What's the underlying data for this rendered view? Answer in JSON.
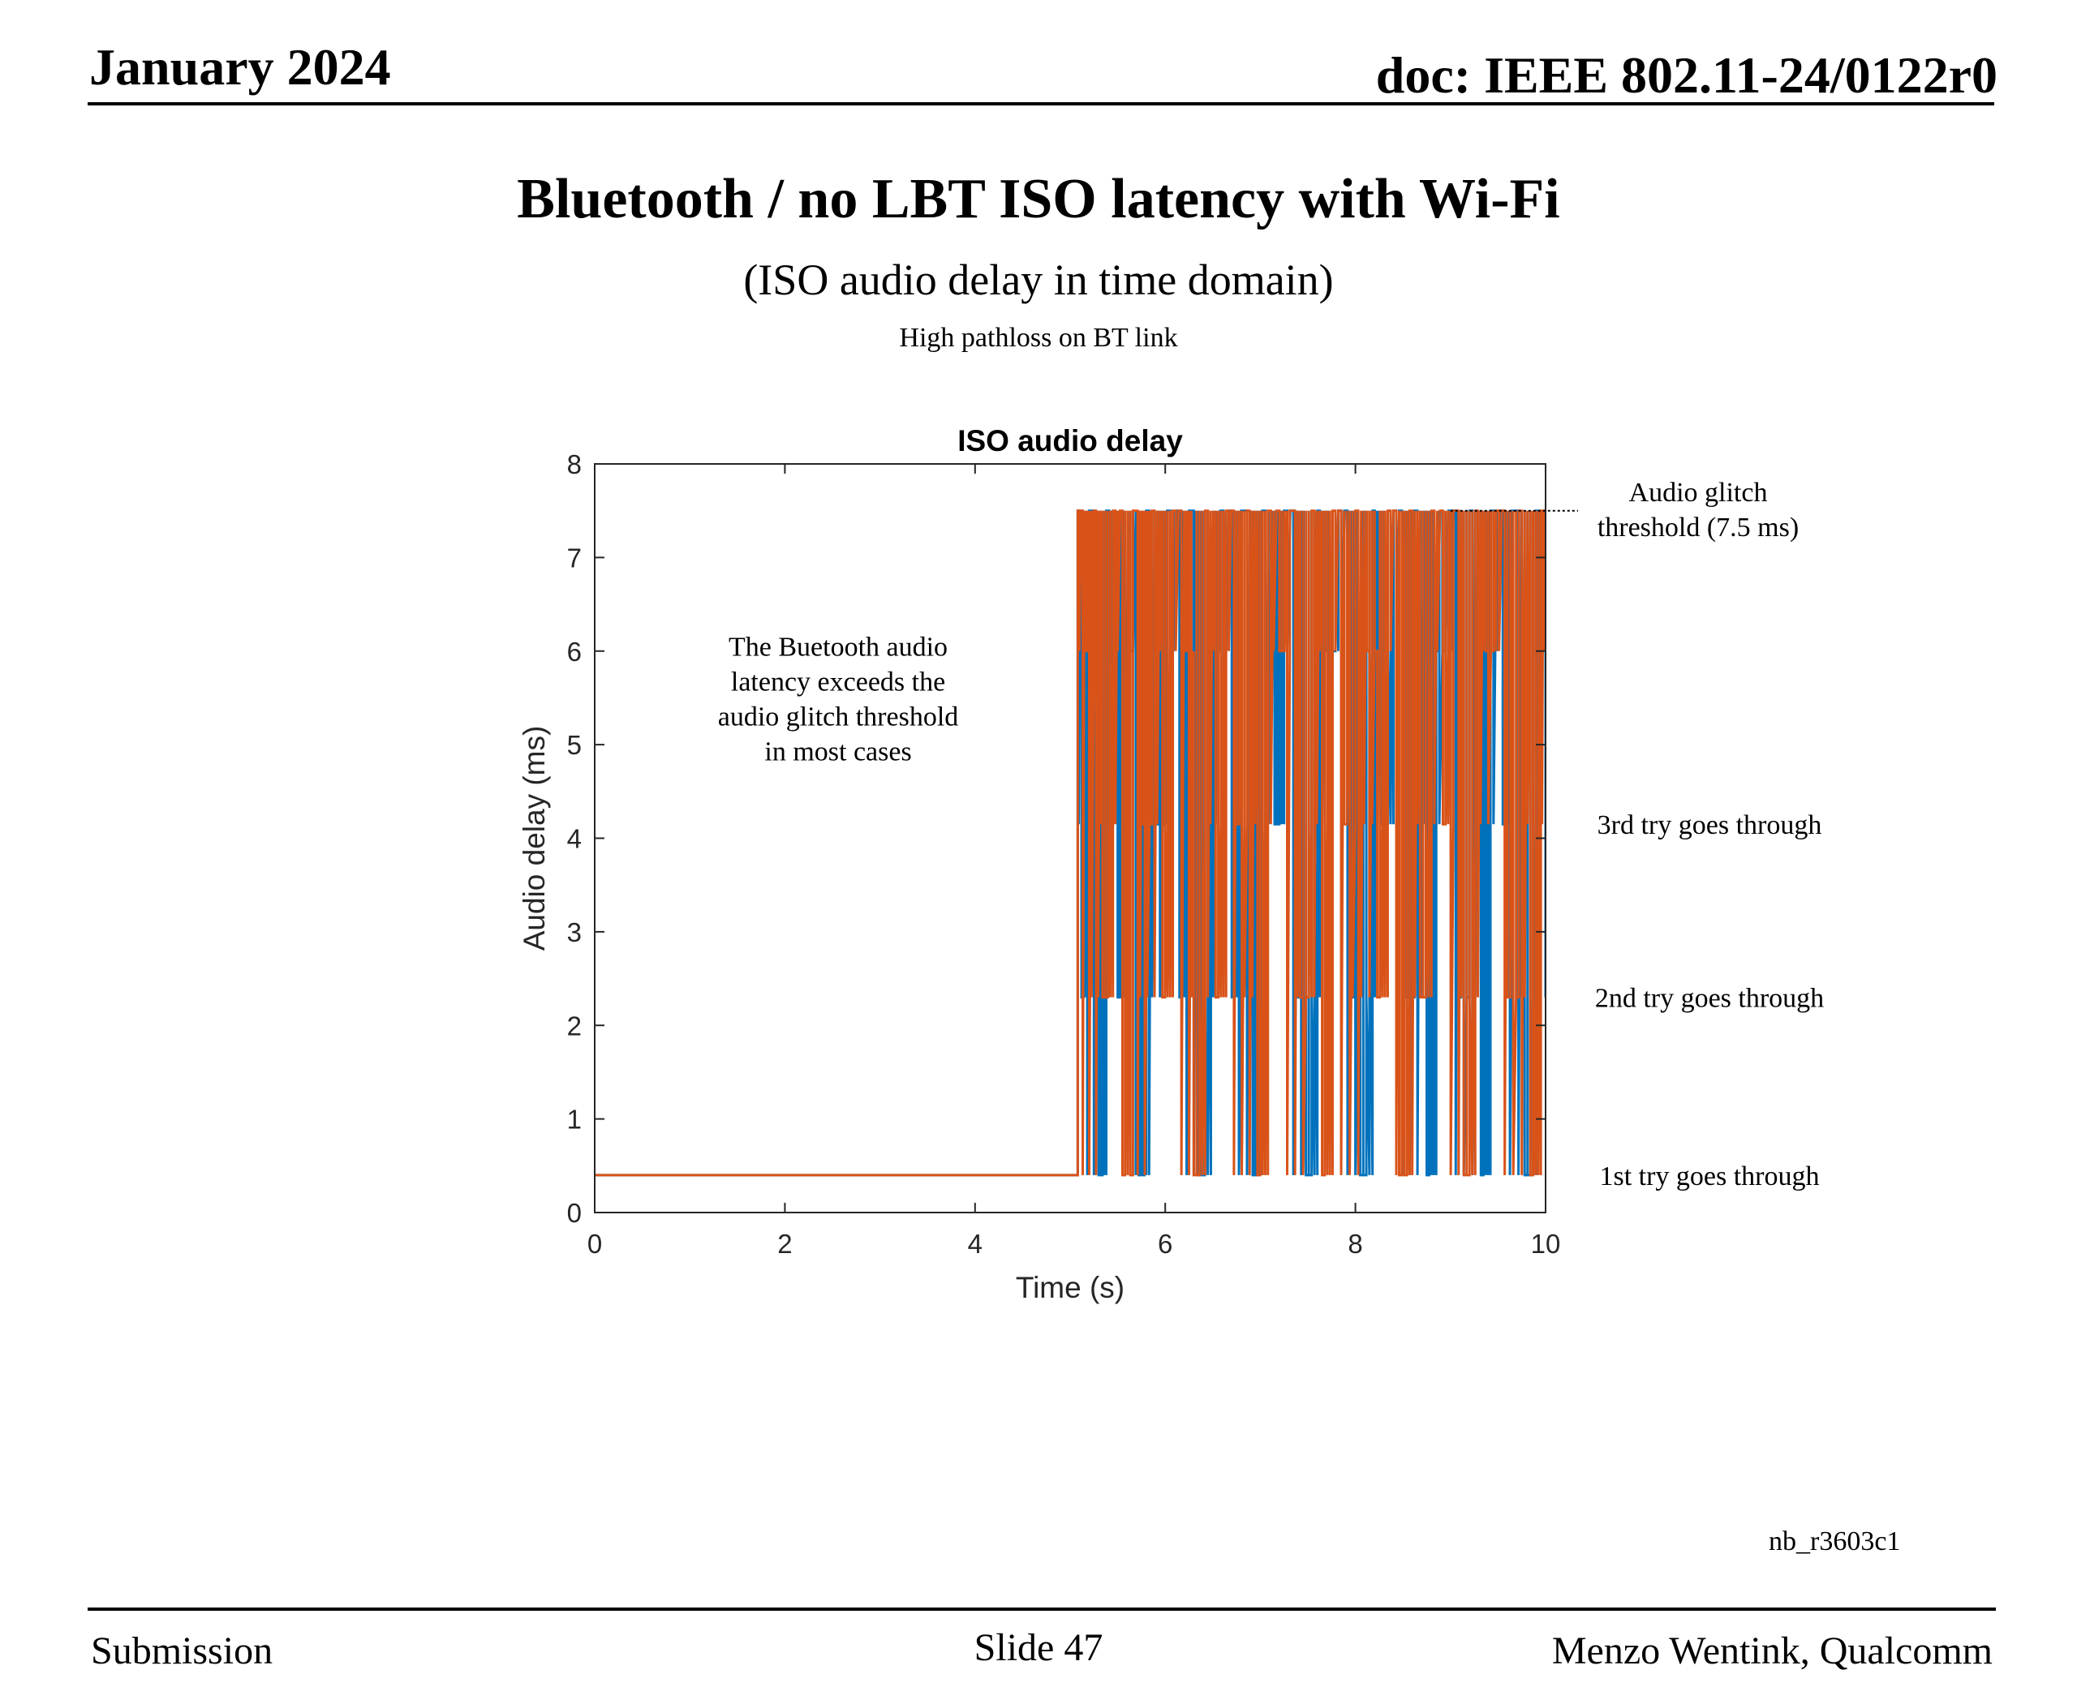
{
  "header": {
    "date": "January 2024",
    "doc": "doc: IEEE 802.11-24/0122r0"
  },
  "slide": {
    "title": "Bluetooth / no LBT ISO latency with Wi-Fi",
    "subtitle": "(ISO audio delay in time domain)",
    "caption": "High pathloss on BT link"
  },
  "footer": {
    "left": "Submission",
    "center": "Slide 47",
    "right": "Menzo Wentink, Qualcomm"
  },
  "reference": "nb_r3603c1",
  "colors": {
    "series1": "#0072BD",
    "series2": "#D95319",
    "axis": "#262626"
  },
  "chart_data": {
    "type": "line",
    "title": "ISO audio delay",
    "xlabel": "Time (s)",
    "ylabel": "Audio delay (ms)",
    "xlim": [
      0,
      10
    ],
    "ylim": [
      0,
      8
    ],
    "xticks": [
      0,
      2,
      4,
      6,
      8,
      10
    ],
    "yticks": [
      0,
      1,
      2,
      3,
      4,
      5,
      6,
      7,
      8
    ],
    "grid": false,
    "delay_levels_ms": [
      0.4,
      2.3,
      4.15,
      6.0,
      7.5
    ],
    "onset_time_s": 5.08,
    "series": [
      {
        "color": "#0072BD",
        "x": [
          0,
          5.08,
          5.12,
          5.2,
          5.3,
          5.38,
          5.5,
          5.6,
          5.72,
          5.8,
          5.92,
          6.02,
          6.15,
          6.25,
          6.35,
          6.48,
          6.58,
          6.7,
          6.8,
          6.92,
          7.02,
          7.15,
          7.25,
          7.38,
          7.48,
          7.6,
          7.7,
          7.82,
          7.95,
          8.05,
          8.18,
          8.28,
          8.4,
          8.52,
          8.62,
          8.75,
          8.85,
          8.98,
          9.08,
          9.2,
          9.32,
          9.42,
          9.55,
          9.65,
          9.78,
          9.9,
          10
        ],
        "y": [
          0.4,
          7.5,
          2.3,
          7.5,
          0.4,
          7.5,
          2.3,
          6.0,
          0.4,
          7.5,
          4.15,
          7.5,
          2.3,
          7.5,
          0.4,
          6.0,
          7.5,
          2.3,
          7.5,
          0.4,
          7.5,
          4.15,
          7.5,
          2.3,
          0.4,
          7.5,
          6.0,
          7.5,
          2.3,
          0.4,
          7.5,
          4.15,
          7.5,
          2.3,
          7.5,
          0.4,
          6.0,
          7.5,
          2.3,
          7.5,
          0.4,
          7.5,
          4.15,
          7.5,
          0.4,
          7.5,
          2.3
        ]
      },
      {
        "color": "#D95319",
        "x": [
          0,
          5.08,
          5.15,
          5.25,
          5.34,
          5.45,
          5.55,
          5.66,
          5.76,
          5.86,
          5.97,
          6.08,
          6.2,
          6.3,
          6.42,
          6.53,
          6.64,
          6.75,
          6.86,
          6.97,
          7.08,
          7.2,
          7.31,
          7.42,
          7.54,
          7.65,
          7.76,
          7.88,
          8.0,
          8.12,
          8.23,
          8.34,
          8.46,
          8.57,
          8.68,
          8.8,
          8.92,
          9.03,
          9.14,
          9.26,
          9.37,
          9.48,
          9.6,
          9.72,
          9.84,
          9.95,
          10
        ],
        "y": [
          0.4,
          7.5,
          6.0,
          7.5,
          2.3,
          7.5,
          0.4,
          7.5,
          4.15,
          7.5,
          2.3,
          7.5,
          6.0,
          0.4,
          7.5,
          2.3,
          7.5,
          4.15,
          7.5,
          0.4,
          7.5,
          6.0,
          7.5,
          2.3,
          7.5,
          0.4,
          7.5,
          4.15,
          7.5,
          6.0,
          2.3,
          7.5,
          0.4,
          7.5,
          2.3,
          7.5,
          4.15,
          7.5,
          0.4,
          7.5,
          6.0,
          7.5,
          2.3,
          7.5,
          0.4,
          7.5,
          6.0
        ]
      }
    ],
    "annotations": [
      {
        "id": "glitch",
        "lines": [
          "Audio glitch",
          "threshold (7.5 ms)"
        ],
        "y": 7.5
      },
      {
        "id": "try3",
        "lines": [
          "3rd try goes through"
        ],
        "y": 4.15
      },
      {
        "id": "try2",
        "lines": [
          "2nd try goes through"
        ],
        "y": 2.3
      },
      {
        "id": "try1",
        "lines": [
          "1st try goes through"
        ],
        "y": 0.4
      },
      {
        "id": "note",
        "lines": [
          "The Buetooth audio",
          "latency exceeds the",
          "audio glitch threshold",
          "in most cases"
        ],
        "x": 2.56,
        "y": 5.95
      }
    ]
  }
}
